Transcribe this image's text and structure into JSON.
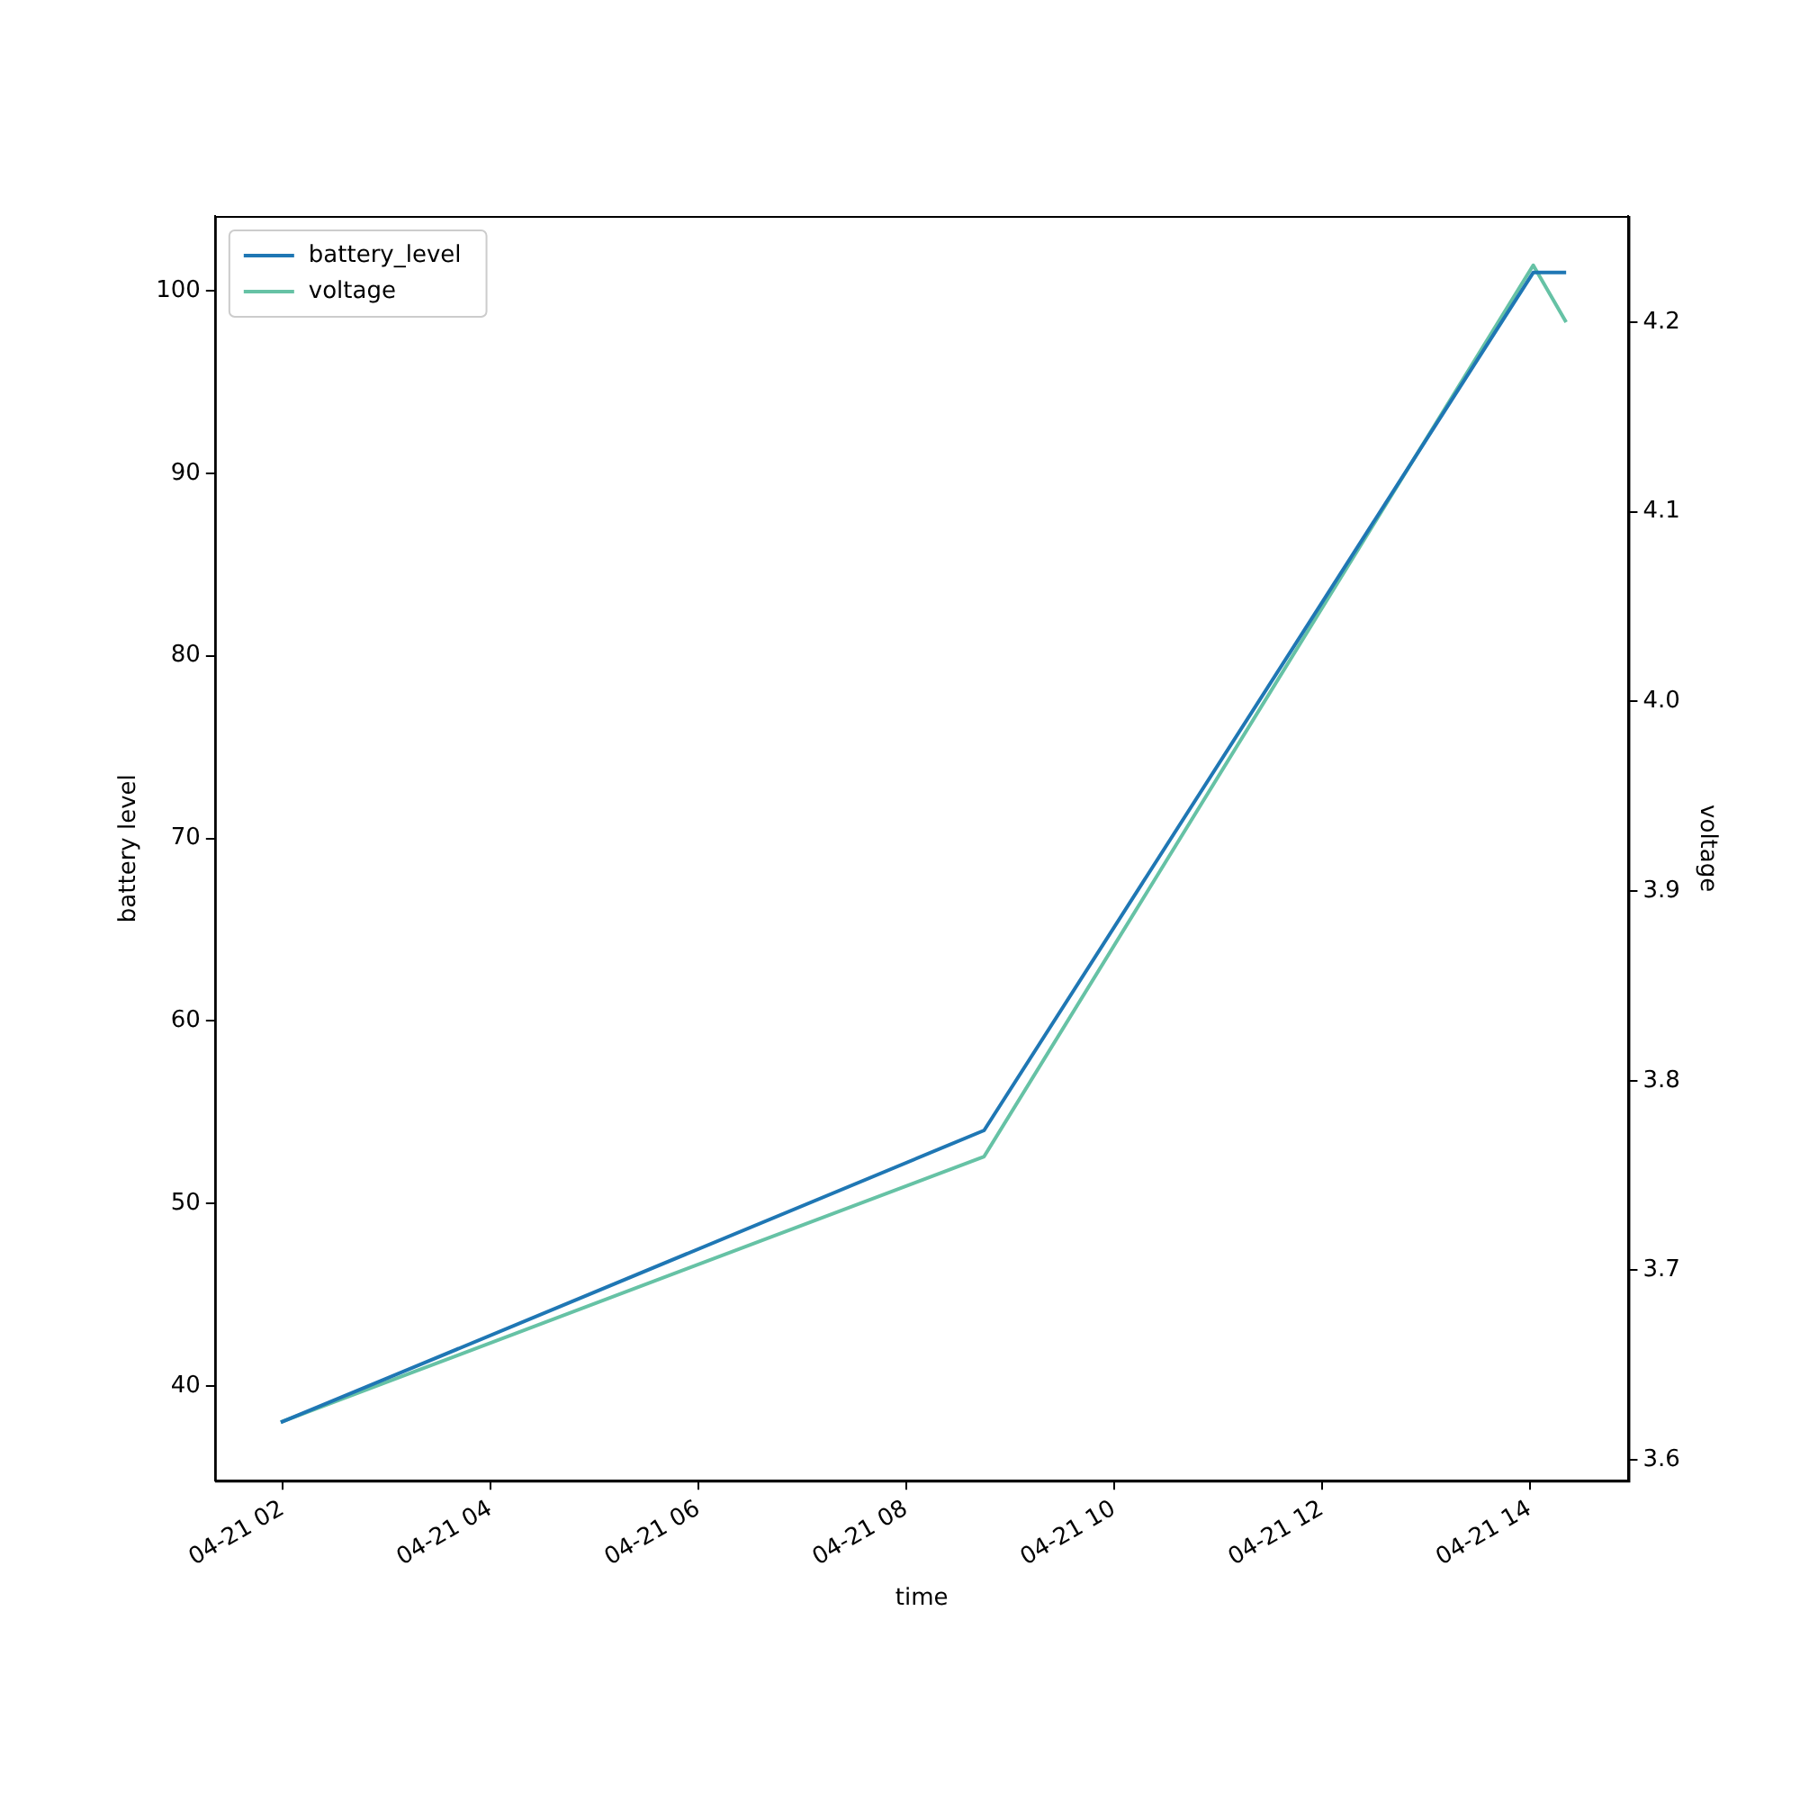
{
  "chart_data": {
    "type": "line",
    "xlabel": "time",
    "ylabel": "battery level",
    "y2label": "voltage",
    "x": [
      "--04-21T01:59",
      "--04-21T08:45",
      "--04-21T14:02",
      "--04-21T14:21"
    ],
    "xlim": [
      "--04-21T01:21",
      "--04-21T14:57"
    ],
    "xticks": [
      {
        "value": "--04-21T02:00",
        "label": "04-21 02"
      },
      {
        "value": "--04-21T04:00",
        "label": "04-21 04"
      },
      {
        "value": "--04-21T06:00",
        "label": "04-21 06"
      },
      {
        "value": "--04-21T08:00",
        "label": "04-21 08"
      },
      {
        "value": "--04-21T10:00",
        "label": "04-21 10"
      },
      {
        "value": "--04-21T12:00",
        "label": "04-21 12"
      },
      {
        "value": "--04-21T14:00",
        "label": "04-21 14"
      }
    ],
    "ylim": [
      34.8,
      104.1
    ],
    "yticks": [
      40,
      50,
      60,
      70,
      80,
      90,
      100
    ],
    "y2lim": [
      3.589,
      4.256
    ],
    "y2ticks": [
      3.6,
      3.7,
      3.8,
      3.9,
      {
        "value": 4,
        "label": "4.0"
      },
      4.1,
      4.2
    ],
    "series": [
      {
        "name": "battery_level",
        "color": "#1f77b4",
        "values": [
          38,
          54,
          101,
          101
        ]
      },
      {
        "name": "voltage",
        "color": "#66c2a5",
        "axis": "y2",
        "values": [
          3.62,
          3.76,
          4.23,
          4.2
        ]
      }
    ],
    "legend": "top left",
    "grid": false,
    "marker": "none",
    "line_style": "solid"
  }
}
